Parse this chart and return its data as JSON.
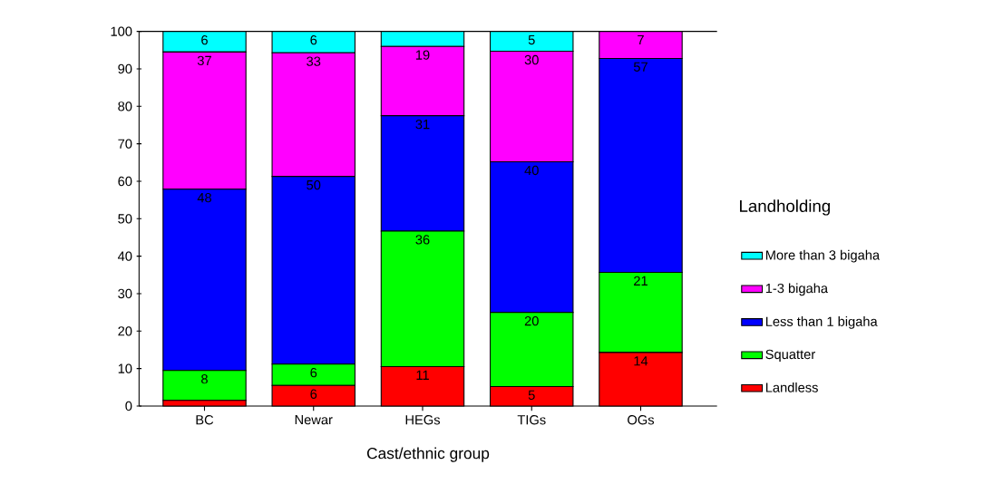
{
  "chart_data": {
    "type": "bar",
    "stacked": true,
    "xlabel": "Cast/ethnic group",
    "legend_title": "Landholding",
    "legend": "right",
    "categories": [
      "BC",
      "Newar",
      "HEGs",
      "TIGs",
      "OGs"
    ],
    "ylim": [
      0,
      100
    ],
    "yticks": [
      0,
      10,
      20,
      30,
      40,
      50,
      60,
      70,
      80,
      90,
      100
    ],
    "series": [
      {
        "name": "Landless",
        "color": "#ff0000",
        "values": [
          1.5,
          5.5,
          10.5,
          5.2,
          14.3
        ],
        "value_labels": [
          null,
          "6",
          "11",
          "5",
          "14"
        ]
      },
      {
        "name": "Squatter",
        "color": "#00ff00",
        "values": [
          8,
          5.7,
          36.2,
          19.8,
          21.4
        ],
        "value_labels": [
          "8",
          "6",
          "36",
          "20",
          "21"
        ]
      },
      {
        "name": "Less than 1 bigaha",
        "color": "#0000ff",
        "values": [
          48.4,
          50.1,
          30.8,
          40.2,
          57.1
        ],
        "value_labels": [
          "48",
          "50",
          "31",
          "40",
          "57"
        ]
      },
      {
        "name": "1-3 bigaha",
        "color": "#ff00ff",
        "values": [
          36.6,
          33,
          18.5,
          29.5,
          7.2
        ],
        "value_labels": [
          "37",
          "33",
          "19",
          "30",
          "7"
        ]
      },
      {
        "name": "More than 3 bigaha",
        "color": "#00ffff",
        "values": [
          5.5,
          5.7,
          4,
          5.3,
          null
        ],
        "value_labels": [
          "6",
          "6",
          null,
          "5",
          null
        ]
      }
    ]
  }
}
